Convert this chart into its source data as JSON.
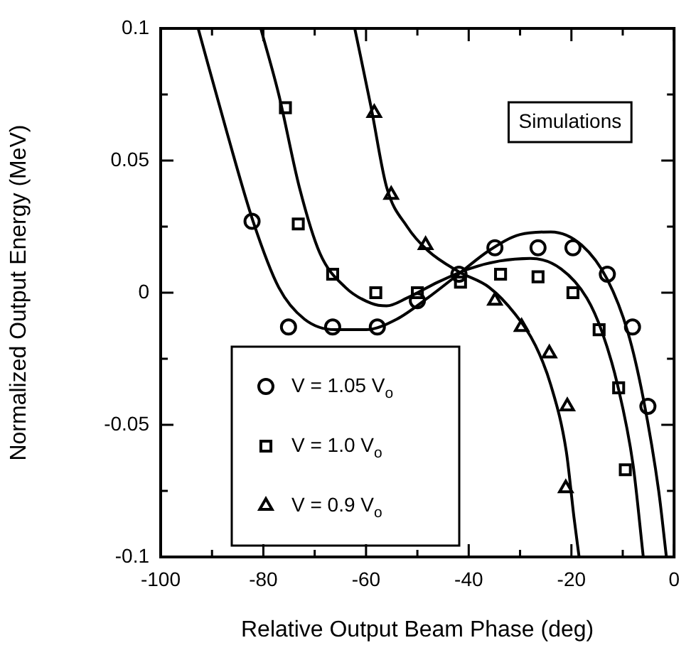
{
  "chart_data": {
    "type": "scatter",
    "xlabel": "Relative Output Beam Phase (deg)",
    "ylabel": "Normalized Output Energy (MeV)",
    "xlim": [
      -100,
      0
    ],
    "ylim": [
      -0.1,
      0.1
    ],
    "xticks": [
      -100,
      {
        "value": -90,
        "label": null
      },
      -80,
      {
        "value": -70,
        "label": null
      },
      -60,
      {
        "value": -50,
        "label": null
      },
      -40,
      {
        "value": -30,
        "label": null
      },
      -20,
      {
        "value": -10,
        "label": null
      },
      0
    ],
    "yticks": [
      -0.1,
      {
        "value": -0.075,
        "label": null
      },
      -0.05,
      {
        "value": -0.025,
        "label": null
      },
      0,
      {
        "value": 0.025,
        "label": null
      },
      0.05,
      {
        "value": 0.075,
        "label": null
      },
      0.1
    ],
    "grid": false,
    "legend": "bottom left",
    "annotations": [
      "Simulations"
    ],
    "series": [
      {
        "name": "V = 1.05 V$_{o}$",
        "color": "#000000",
        "marker": "circle",
        "x": [
          -82.2,
          -75.1,
          -66.5,
          -57.8,
          -50,
          -41.9,
          -34.9,
          -26.5,
          -19.7,
          -13,
          -8.1,
          -5.1
        ],
        "values": [
          0.027,
          -0.013,
          -0.013,
          -0.013,
          -0.003,
          0.007,
          0.017,
          0.017,
          0.017,
          0.007,
          -0.013,
          -0.043
        ]
      },
      {
        "name": "V = 1.0 V$_{o}$",
        "color": "#000000",
        "marker": "square",
        "x": [
          -75.7,
          -73.2,
          -66.5,
          -58.1,
          -50,
          -41.6,
          -33.8,
          -26.5,
          -19.7,
          -14.6,
          -10.8,
          -9.5
        ],
        "values": [
          0.07,
          0.026,
          0.007,
          0,
          0,
          0.004,
          0.007,
          0.006,
          0,
          -0.014,
          -0.036,
          -0.067
        ]
      },
      {
        "name": "V = 0.9 V$_{o}$",
        "color": "#000000",
        "marker": "triangle",
        "x": [
          -58.4,
          -55.1,
          -48.4,
          -34.9,
          -29.7,
          -24.3,
          -20.8,
          -21.1
        ],
        "values": [
          0.068,
          0.037,
          0.018,
          -0.003,
          -0.013,
          -0.023,
          -0.043,
          -0.074
        ]
      },
      {
        "type": "line",
        "color": "#000000",
        "marker": "none",
        "x": [
          -92.7,
          -87,
          -82,
          -77,
          -72,
          -66,
          -60,
          -54,
          -48,
          -42,
          -36,
          -30,
          -24,
          -18,
          -13,
          -9,
          -6,
          -3,
          -1.5
        ],
        "values": [
          0.1,
          0.06,
          0.027,
          0.002,
          -0.01,
          -0.014,
          -0.014,
          -0.01,
          -0.002,
          0.007,
          0.016,
          0.022,
          0.023,
          0.018,
          0.005,
          -0.015,
          -0.04,
          -0.075,
          -0.1
        ]
      },
      {
        "type": "line",
        "color": "#000000",
        "marker": "none",
        "x": [
          -80.5,
          -77,
          -73,
          -69,
          -64,
          -59,
          -56,
          -52,
          -46,
          -40,
          -34,
          -28,
          -22,
          -17,
          -14,
          -11,
          -8,
          -6
        ],
        "values": [
          0.1,
          0.075,
          0.04,
          0.015,
          0.002,
          -0.004,
          -0.005,
          -0.002,
          0.004,
          0.009,
          0.012,
          0.013,
          0.009,
          -0.002,
          -0.015,
          -0.035,
          -0.065,
          -0.1
        ]
      },
      {
        "type": "line",
        "color": "#000000",
        "marker": "none",
        "x": [
          -62.2,
          -59,
          -56,
          -52,
          -48,
          -42,
          -36,
          -31,
          -27,
          -24,
          -21,
          -19.5,
          -18.5
        ],
        "values": [
          0.1,
          0.07,
          0.04,
          0.025,
          0.016,
          0.008,
          0.002,
          -0.008,
          -0.02,
          -0.035,
          -0.06,
          -0.085,
          -0.1
        ]
      }
    ]
  }
}
